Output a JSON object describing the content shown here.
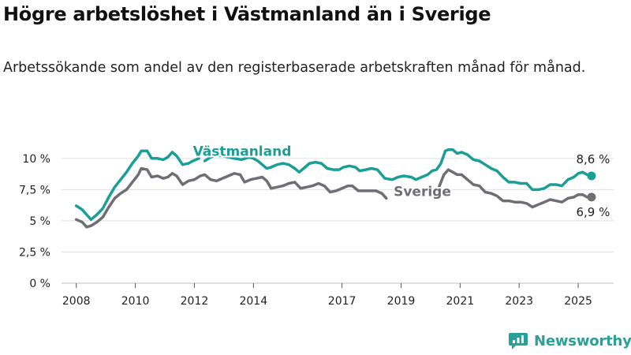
{
  "header": {
    "title": "Högre arbetslöshet i Västmanland än i Sverige",
    "subtitle": "Arbetssökande som andel av den registerbaserade arbetskraften månad för månad."
  },
  "brand": {
    "name": "Newsworthy",
    "icon": "newsworthy-logo-icon",
    "color": "#2aa198"
  },
  "chart_data": {
    "type": "line",
    "title": "Högre arbetslöshet i Västmanland än i Sverige",
    "subtitle": "Arbetssökande som andel av den registerbaserade arbetskraften månad för månad.",
    "xlabel": "",
    "ylabel": "",
    "ylim": [
      0,
      11
    ],
    "xlim": [
      2007.5,
      2026.2
    ],
    "grid": true,
    "y_ticks": [
      {
        "value": 0,
        "label": "0 %"
      },
      {
        "value": 2.5,
        "label": "2,5 %"
      },
      {
        "value": 5,
        "label": "5 %"
      },
      {
        "value": 7.5,
        "label": "7,5 %"
      },
      {
        "value": 10,
        "label": "10 %"
      }
    ],
    "x_ticks": [
      {
        "value": 2008,
        "label": "2008"
      },
      {
        "value": 2010,
        "label": "2010"
      },
      {
        "value": 2012,
        "label": "2012"
      },
      {
        "value": 2014,
        "label": "2014"
      },
      {
        "value": 2017,
        "label": "2017"
      },
      {
        "value": 2019,
        "label": "2019"
      },
      {
        "value": 2021,
        "label": "2021"
      },
      {
        "value": 2023,
        "label": "2023"
      },
      {
        "value": 2025,
        "label": "2025"
      }
    ],
    "series": [
      {
        "name": "Västmanland",
        "color": "#1a9e96",
        "end_label": "8,6 %",
        "label_at": [
          2011.95,
          10.2
        ],
        "segments": [
          [
            [
              2008.0,
              6.2
            ],
            [
              2008.2,
              5.9
            ],
            [
              2008.35,
              5.5
            ],
            [
              2008.5,
              5.1
            ],
            [
              2008.7,
              5.5
            ],
            [
              2008.9,
              6.0
            ],
            [
              2009.1,
              6.9
            ],
            [
              2009.3,
              7.7
            ],
            [
              2009.5,
              8.3
            ],
            [
              2009.7,
              8.9
            ],
            [
              2009.9,
              9.6
            ],
            [
              2010.1,
              10.2
            ],
            [
              2010.2,
              10.6
            ],
            [
              2010.4,
              10.6
            ],
            [
              2010.55,
              10.0
            ],
            [
              2010.75,
              10.0
            ],
            [
              2010.95,
              9.9
            ],
            [
              2011.1,
              10.1
            ],
            [
              2011.25,
              10.5
            ],
            [
              2011.4,
              10.2
            ],
            [
              2011.6,
              9.5
            ],
            [
              2011.8,
              9.6
            ],
            [
              2011.95,
              9.8
            ],
            [
              2012.15,
              10.0
            ]
          ],
          [
            [
              2012.35,
              9.8
            ],
            [
              2012.55,
              10.1
            ],
            [
              2012.75,
              10.3
            ],
            [
              2012.95,
              10.2
            ],
            [
              2013.15,
              10.1
            ],
            [
              2013.35,
              10.0
            ],
            [
              2013.6,
              9.9
            ],
            [
              2013.85,
              10.1
            ],
            [
              2014.0,
              10.0
            ],
            [
              2014.15,
              9.8
            ],
            [
              2014.3,
              9.5
            ],
            [
              2014.45,
              9.2
            ],
            [
              2014.6,
              9.3
            ],
            [
              2014.8,
              9.5
            ],
            [
              2015.0,
              9.6
            ],
            [
              2015.2,
              9.5
            ],
            [
              2015.4,
              9.2
            ],
            [
              2015.55,
              8.9
            ],
            [
              2015.7,
              9.2
            ],
            [
              2015.9,
              9.6
            ],
            [
              2016.1,
              9.7
            ],
            [
              2016.3,
              9.6
            ],
            [
              2016.5,
              9.2
            ],
            [
              2016.7,
              9.1
            ],
            [
              2016.9,
              9.1
            ],
            [
              2017.05,
              9.3
            ],
            [
              2017.25,
              9.4
            ],
            [
              2017.45,
              9.3
            ],
            [
              2017.6,
              9.0
            ],
            [
              2017.8,
              9.1
            ],
            [
              2018.0,
              9.2
            ],
            [
              2018.2,
              9.1
            ],
            [
              2018.45,
              8.4
            ],
            [
              2018.7,
              8.3
            ],
            [
              2018.9,
              8.5
            ],
            [
              2019.1,
              8.6
            ],
            [
              2019.35,
              8.5
            ],
            [
              2019.5,
              8.3
            ],
            [
              2019.7,
              8.5
            ],
            [
              2019.9,
              8.7
            ],
            [
              2020.05,
              9.0
            ],
            [
              2020.2,
              9.1
            ],
            [
              2020.35,
              9.6
            ],
            [
              2020.5,
              10.6
            ],
            [
              2020.6,
              10.7
            ],
            [
              2020.75,
              10.7
            ],
            [
              2020.9,
              10.4
            ],
            [
              2021.05,
              10.5
            ],
            [
              2021.25,
              10.3
            ],
            [
              2021.45,
              9.9
            ],
            [
              2021.65,
              9.8
            ],
            [
              2021.85,
              9.5
            ],
            [
              2022.05,
              9.2
            ],
            [
              2022.25,
              9.0
            ],
            [
              2022.45,
              8.5
            ],
            [
              2022.65,
              8.1
            ],
            [
              2022.85,
              8.1
            ],
            [
              2023.05,
              8.0
            ],
            [
              2023.25,
              8.0
            ],
            [
              2023.45,
              7.5
            ],
            [
              2023.65,
              7.5
            ],
            [
              2023.85,
              7.6
            ],
            [
              2024.05,
              7.9
            ],
            [
              2024.25,
              7.9
            ],
            [
              2024.45,
              7.8
            ],
            [
              2024.65,
              8.3
            ],
            [
              2024.85,
              8.5
            ],
            [
              2025.0,
              8.8
            ],
            [
              2025.15,
              8.9
            ],
            [
              2025.3,
              8.7
            ],
            [
              2025.45,
              8.6
            ]
          ]
        ]
      },
      {
        "name": "Sverige",
        "color": "#6f6e74",
        "end_label": "6,9 %",
        "label_at": [
          2018.75,
          7.0
        ],
        "segments": [
          [
            [
              2008.0,
              5.1
            ],
            [
              2008.2,
              4.9
            ],
            [
              2008.35,
              4.5
            ],
            [
              2008.5,
              4.6
            ],
            [
              2008.7,
              4.9
            ],
            [
              2008.9,
              5.3
            ],
            [
              2009.1,
              6.1
            ],
            [
              2009.3,
              6.8
            ],
            [
              2009.5,
              7.2
            ],
            [
              2009.7,
              7.5
            ],
            [
              2009.9,
              8.1
            ],
            [
              2010.1,
              8.7
            ],
            [
              2010.2,
              9.2
            ],
            [
              2010.4,
              9.1
            ],
            [
              2010.55,
              8.5
            ],
            [
              2010.75,
              8.6
            ],
            [
              2010.95,
              8.4
            ],
            [
              2011.1,
              8.5
            ],
            [
              2011.25,
              8.8
            ],
            [
              2011.4,
              8.6
            ],
            [
              2011.6,
              7.9
            ],
            [
              2011.8,
              8.2
            ],
            [
              2012.0,
              8.3
            ],
            [
              2012.2,
              8.6
            ],
            [
              2012.35,
              8.7
            ],
            [
              2012.55,
              8.3
            ],
            [
              2012.75,
              8.2
            ],
            [
              2012.95,
              8.4
            ],
            [
              2013.15,
              8.6
            ],
            [
              2013.35,
              8.8
            ],
            [
              2013.55,
              8.7
            ],
            [
              2013.7,
              8.1
            ],
            [
              2013.9,
              8.3
            ],
            [
              2014.1,
              8.4
            ],
            [
              2014.3,
              8.5
            ],
            [
              2014.45,
              8.2
            ],
            [
              2014.6,
              7.6
            ],
            [
              2014.8,
              7.7
            ],
            [
              2015.0,
              7.8
            ],
            [
              2015.2,
              8.0
            ],
            [
              2015.4,
              8.1
            ],
            [
              2015.6,
              7.6
            ],
            [
              2015.8,
              7.7
            ],
            [
              2016.0,
              7.8
            ],
            [
              2016.2,
              8.0
            ],
            [
              2016.4,
              7.8
            ],
            [
              2016.6,
              7.3
            ],
            [
              2016.8,
              7.4
            ],
            [
              2017.0,
              7.6
            ],
            [
              2017.2,
              7.8
            ],
            [
              2017.35,
              7.8
            ],
            [
              2017.55,
              7.4
            ],
            [
              2017.75,
              7.4
            ],
            [
              2017.95,
              7.4
            ],
            [
              2018.15,
              7.4
            ],
            [
              2018.35,
              7.2
            ],
            [
              2018.5,
              6.8
            ]
          ],
          [
            [
              2020.25,
              7.5
            ],
            [
              2020.45,
              8.7
            ],
            [
              2020.6,
              9.1
            ],
            [
              2020.75,
              8.9
            ],
            [
              2020.9,
              8.7
            ],
            [
              2021.05,
              8.7
            ],
            [
              2021.25,
              8.3
            ],
            [
              2021.45,
              7.9
            ],
            [
              2021.65,
              7.8
            ],
            [
              2021.85,
              7.3
            ],
            [
              2022.05,
              7.2
            ],
            [
              2022.25,
              7.0
            ],
            [
              2022.45,
              6.6
            ],
            [
              2022.65,
              6.6
            ],
            [
              2022.85,
              6.5
            ],
            [
              2023.05,
              6.5
            ],
            [
              2023.25,
              6.4
            ],
            [
              2023.45,
              6.1
            ],
            [
              2023.65,
              6.3
            ],
            [
              2023.85,
              6.5
            ],
            [
              2024.05,
              6.7
            ],
            [
              2024.25,
              6.6
            ],
            [
              2024.45,
              6.5
            ],
            [
              2024.65,
              6.8
            ],
            [
              2024.85,
              6.9
            ],
            [
              2025.0,
              7.1
            ],
            [
              2025.15,
              7.1
            ],
            [
              2025.3,
              6.9
            ],
            [
              2025.45,
              6.9
            ]
          ]
        ]
      }
    ]
  }
}
